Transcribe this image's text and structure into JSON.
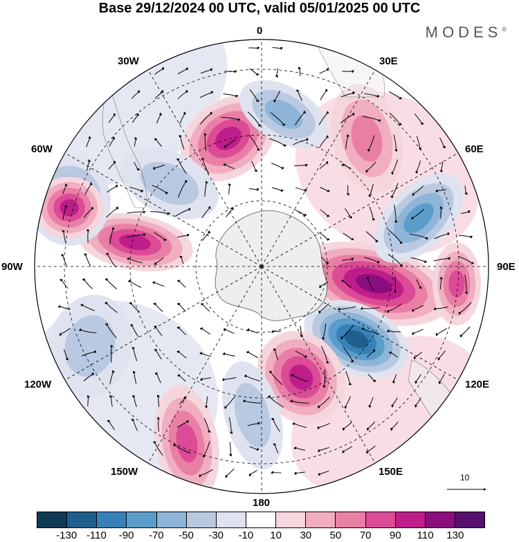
{
  "title": "Base 29/12/2024 00 UTC, valid 05/01/2025 00 UTC",
  "brand": "MODES",
  "brand_mark": "®",
  "longitude_labels": {
    "top": "0",
    "e30": "30E",
    "e60": "60E",
    "e90": "90E",
    "e120": "120E",
    "e150": "150E",
    "bottom": "180",
    "w150": "150W",
    "w120": "120W",
    "w90": "90W",
    "w60": "60W",
    "w30": "30W"
  },
  "reference_vector": {
    "label": "10"
  },
  "colorbar": {
    "colors": [
      "#0f3b57",
      "#1f5f8e",
      "#3682b8",
      "#5b9dca",
      "#8eb5d8",
      "#b9c9e1",
      "#dfe2ef",
      "#ffffff",
      "#f6d6dd",
      "#f0aec0",
      "#ea7fa6",
      "#dc4b95",
      "#be1d8a",
      "#8c0d7e",
      "#58106f"
    ],
    "tick_labels": [
      "-130",
      "-110",
      "-90",
      "-70",
      "-50",
      "-30",
      "-10",
      "10",
      "30",
      "50",
      "70",
      "90",
      "110",
      "130"
    ]
  },
  "projection": "south polar stereographic",
  "map_anomalies": [
    {
      "id": "a1",
      "sign": "positive",
      "peak": 110
    },
    {
      "id": "a2",
      "sign": "positive",
      "peak": 130
    },
    {
      "id": "a3",
      "sign": "negative",
      "peak": -130
    },
    {
      "id": "a4",
      "sign": "positive",
      "peak": 110
    },
    {
      "id": "a5",
      "sign": "negative",
      "peak": -90
    },
    {
      "id": "a6",
      "sign": "positive",
      "peak": 70
    },
    {
      "id": "a7",
      "sign": "positive",
      "peak": 110
    },
    {
      "id": "a8",
      "sign": "negative",
      "peak": -90
    },
    {
      "id": "a9",
      "sign": "negative",
      "peak": -50
    },
    {
      "id": "a10",
      "sign": "positive",
      "peak": 90
    },
    {
      "id": "a11",
      "sign": "positive",
      "peak": 110
    },
    {
      "id": "a12",
      "sign": "negative",
      "peak": -70
    },
    {
      "id": "a13",
      "sign": "negative",
      "peak": -50
    },
    {
      "id": "a14",
      "sign": "positive",
      "peak": 90
    },
    {
      "id": "a15",
      "sign": "negative",
      "peak": -50
    }
  ]
}
